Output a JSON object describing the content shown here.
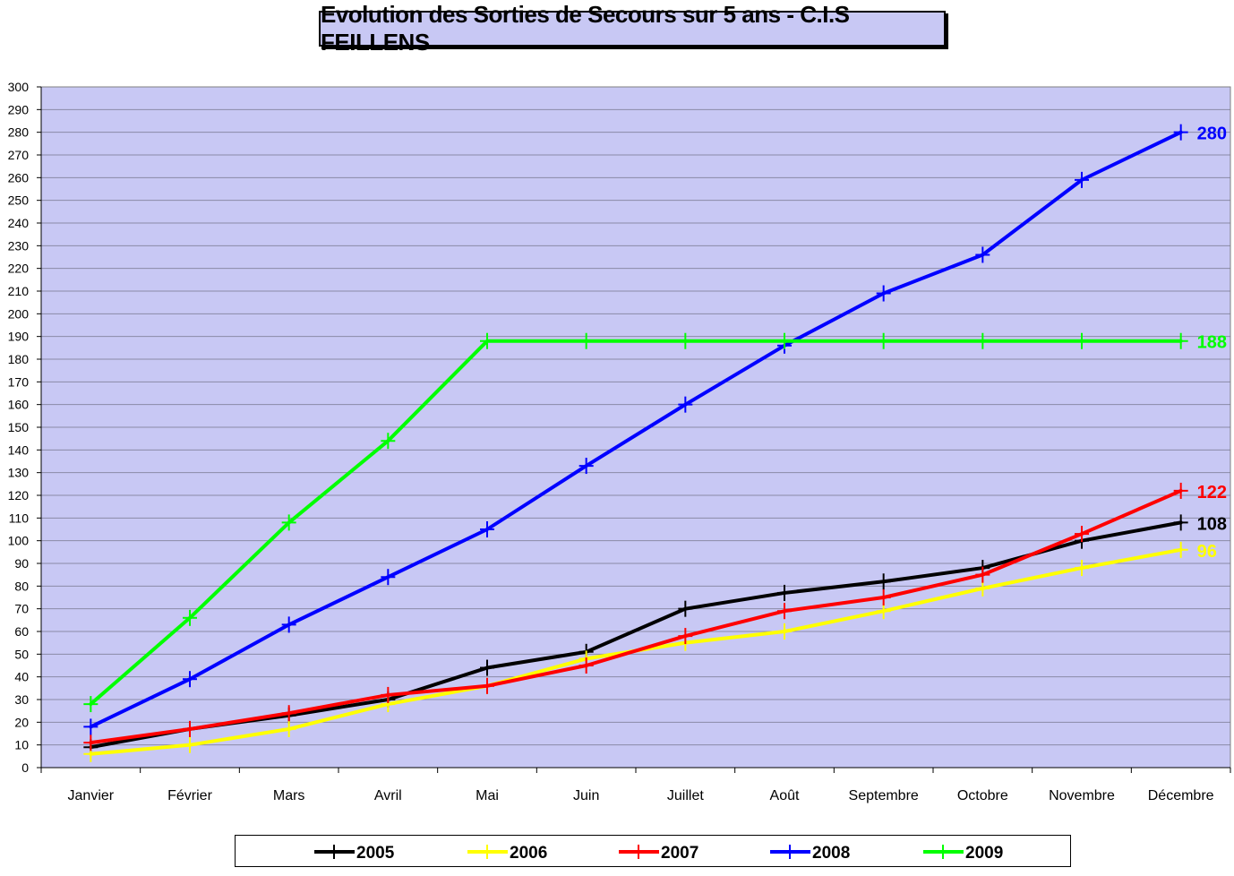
{
  "chart_data": {
    "type": "line",
    "title": "Evolution des Sorties de Secours sur 5 ans - C.I.S FEILLENS",
    "xlabel": "",
    "ylabel": "",
    "ylim": [
      0,
      300
    ],
    "ytick_step": 10,
    "grid": true,
    "legend_position": "bottom",
    "categories": [
      "Janvier",
      "Février",
      "Mars",
      "Avril",
      "Mai",
      "Juin",
      "Juillet",
      "Août",
      "Septembre",
      "Octobre",
      "Novembre",
      "Décembre"
    ],
    "series": [
      {
        "name": "2005",
        "color": "#000000",
        "values": [
          9,
          17,
          23,
          30,
          44,
          51,
          70,
          77,
          82,
          88,
          100,
          108
        ],
        "end_label": "108"
      },
      {
        "name": "2006",
        "color": "#ffff00",
        "values": [
          6,
          10,
          17,
          28,
          36,
          48,
          55,
          60,
          69,
          79,
          88,
          96
        ],
        "end_label": "96"
      },
      {
        "name": "2007",
        "color": "#ff0000",
        "values": [
          11,
          17,
          24,
          32,
          36,
          45,
          58,
          69,
          75,
          85,
          103,
          122
        ],
        "end_label": "122"
      },
      {
        "name": "2008",
        "color": "#0000ff",
        "values": [
          18,
          39,
          63,
          84,
          105,
          133,
          160,
          186,
          209,
          226,
          259,
          280
        ],
        "end_label": "280"
      },
      {
        "name": "2009",
        "color": "#00ff00",
        "values": [
          28,
          66,
          108,
          144,
          188,
          188,
          188,
          188,
          188,
          188,
          188,
          188
        ],
        "end_label": "188"
      }
    ]
  },
  "colors": {
    "plot_background": "#c8c8f4",
    "gridline": "#8a8aa6",
    "title_background": "#c8c8f4"
  }
}
